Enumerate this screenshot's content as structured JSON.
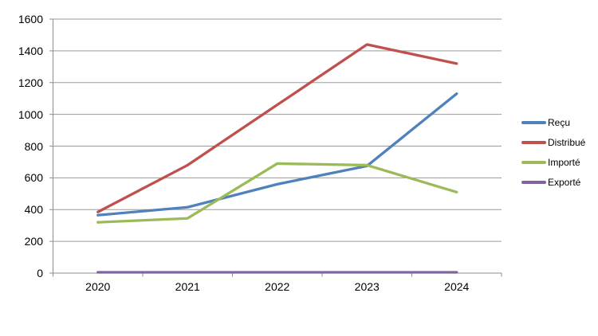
{
  "chart_data": {
    "type": "line",
    "categories": [
      "2020",
      "2021",
      "2022",
      "2023",
      "2024"
    ],
    "series": [
      {
        "name": "Reçu",
        "color": "#4F81BD",
        "values": [
          365,
          415,
          560,
          675,
          1130
        ]
      },
      {
        "name": "Distribué",
        "color": "#C0504D",
        "values": [
          385,
          680,
          1060,
          1440,
          1320
        ]
      },
      {
        "name": "Importé",
        "color": "#9BBB59",
        "values": [
          320,
          345,
          690,
          680,
          510
        ]
      },
      {
        "name": "Exporté",
        "color": "#8064A2",
        "values": [
          5,
          5,
          5,
          5,
          5
        ]
      }
    ],
    "title": "",
    "xlabel": "",
    "ylabel": "",
    "ylim": [
      0,
      1600
    ],
    "yticks": [
      0,
      200,
      400,
      600,
      800,
      1000,
      1200,
      1400,
      1600
    ],
    "grid": true,
    "legend_position": "right",
    "grid_color": "#9a9a9a",
    "axis_color": "#8c8c8c",
    "text_color": "#000000",
    "background_color": "#ffffff"
  }
}
